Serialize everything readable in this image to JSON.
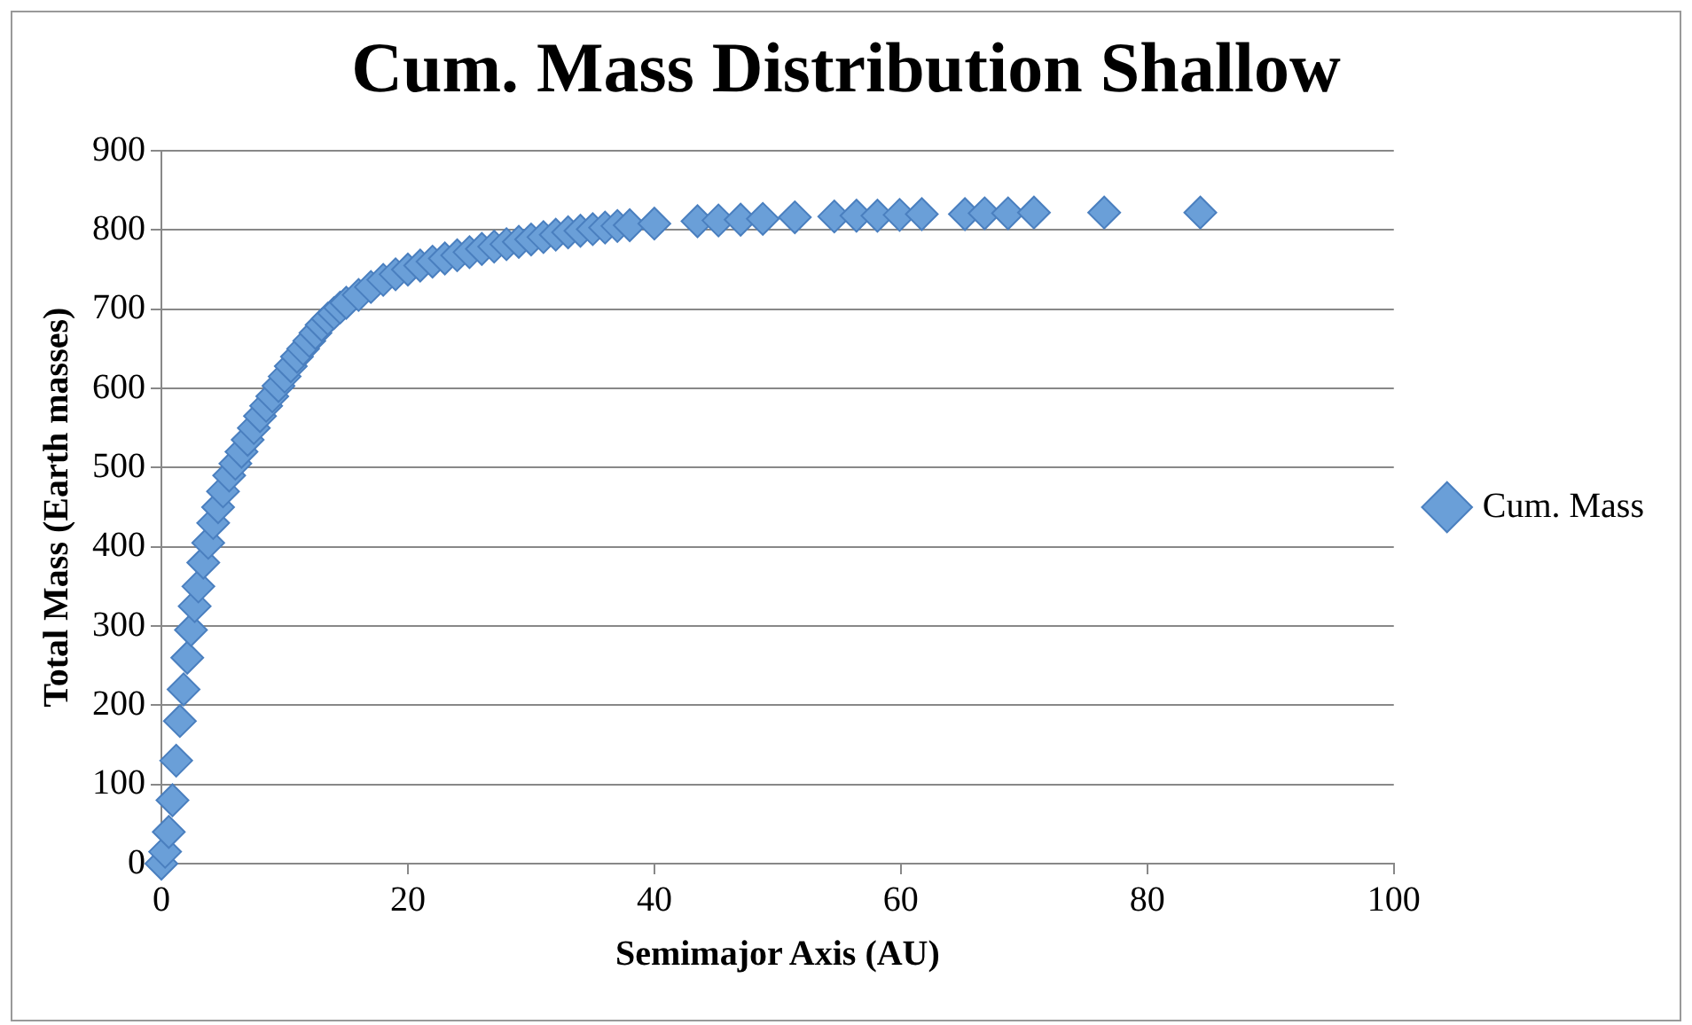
{
  "chart_data": {
    "type": "scatter",
    "title": "Cum. Mass Distribution Shallow",
    "xlabel": "Semimajor Axis (AU)",
    "ylabel": "Total Mass (Earth masses)",
    "xlim": [
      0,
      100
    ],
    "xticks": [
      0,
      20,
      40,
      60,
      80,
      100
    ],
    "ylim": [
      0,
      900
    ],
    "yticks": [
      0,
      100,
      200,
      300,
      400,
      500,
      600,
      700,
      800,
      900
    ],
    "grid": "y",
    "legend": "right",
    "marker": "diamond",
    "series": [
      {
        "name": "Cum. Mass",
        "color": "#6a9fd8",
        "x": [
          0,
          0.3,
          0.6,
          0.9,
          1.2,
          1.5,
          1.8,
          2.1,
          2.4,
          2.7,
          3,
          3.4,
          3.8,
          4.2,
          4.6,
          5,
          5.5,
          6,
          6.5,
          7,
          7.5,
          8,
          8.5,
          9,
          9.5,
          10,
          10.5,
          11,
          11.5,
          12,
          12.5,
          13,
          13.5,
          14,
          14.5,
          15,
          16,
          17,
          18,
          19,
          20,
          21,
          22,
          23,
          24,
          25,
          26,
          27,
          28,
          29,
          30,
          31,
          32,
          33,
          34,
          35,
          36,
          37,
          38,
          40,
          43.5,
          45.2,
          47,
          48.8,
          51.4,
          54.6,
          56.4,
          58.1,
          59.9,
          61.7,
          65.2,
          66.8,
          68.7,
          70.8,
          76.5,
          84.3
        ],
        "values": [
          0,
          15,
          40,
          80,
          130,
          180,
          220,
          260,
          295,
          325,
          350,
          380,
          405,
          430,
          450,
          470,
          490,
          505,
          520,
          535,
          550,
          565,
          578,
          590,
          603,
          615,
          628,
          640,
          650,
          660,
          670,
          680,
          688,
          695,
          702,
          708,
          718,
          728,
          737,
          744,
          750,
          755,
          760,
          764,
          768,
          772,
          776,
          779,
          782,
          785,
          788,
          791,
          794,
          797,
          799,
          801,
          803,
          805,
          806,
          808,
          811,
          812,
          813,
          814,
          816,
          817,
          818,
          818,
          819,
          820,
          820,
          821,
          821,
          822,
          822,
          822
        ]
      }
    ]
  }
}
